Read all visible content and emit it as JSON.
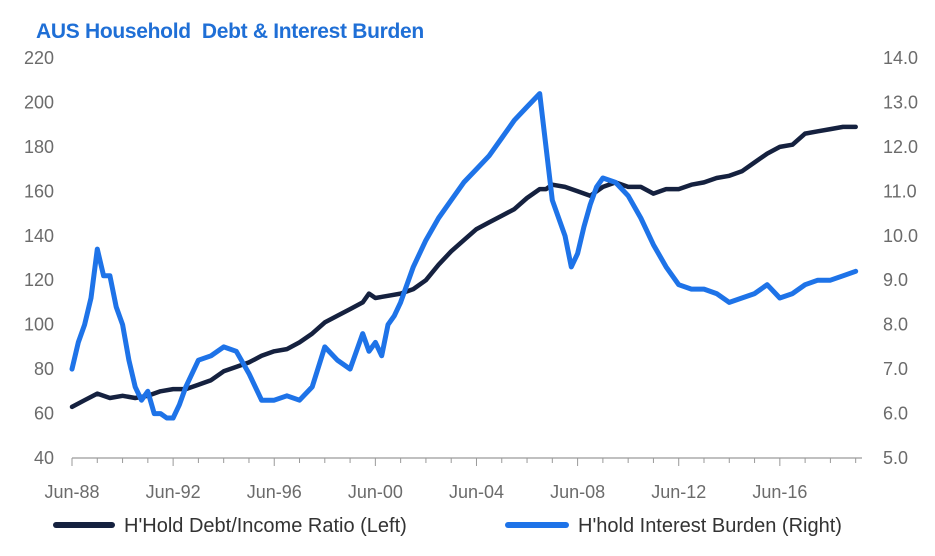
{
  "chart_data": {
    "type": "line",
    "title": "AUS Household  Debt & Interest Burden",
    "colors": {
      "title": "#1f6fd6",
      "debt": "#15213f",
      "interest": "#1e73e8",
      "axis": "#9a9a9a",
      "ticks": "#6b6b6b"
    },
    "x_ticks": [
      "Jun-88",
      "Jun-92",
      "Jun-96",
      "Jun-00",
      "Jun-04",
      "Jun-08",
      "Jun-12",
      "Jun-16"
    ],
    "x_range": [
      1988.5,
      2019.75
    ],
    "y_left": {
      "ticks": [
        "40",
        "60",
        "80",
        "100",
        "120",
        "140",
        "160",
        "180",
        "200",
        "220"
      ],
      "range": [
        40,
        220
      ]
    },
    "y_right": {
      "ticks": [
        "5.0",
        "6.0",
        "7.0",
        "8.0",
        "9.0",
        "10.0",
        "11.0",
        "12.0",
        "13.0",
        "14.0"
      ],
      "range": [
        5.0,
        14.0
      ]
    },
    "grid": false,
    "legend_position": "bottom",
    "series": [
      {
        "name": "H'Hold Debt/Income Ratio (Left)",
        "axis": "left",
        "x": [
          1988.5,
          1989.0,
          1989.5,
          1990.0,
          1990.5,
          1991.0,
          1991.5,
          1992.0,
          1992.5,
          1993.0,
          1993.5,
          1994.0,
          1994.5,
          1995.0,
          1995.5,
          1996.0,
          1996.5,
          1997.0,
          1997.5,
          1998.0,
          1998.5,
          1999.0,
          1999.5,
          2000.0,
          2000.25,
          2000.5,
          2001.0,
          2001.5,
          2002.0,
          2002.5,
          2003.0,
          2003.5,
          2004.0,
          2004.5,
          2005.0,
          2005.5,
          2006.0,
          2006.5,
          2007.0,
          2007.25,
          2007.5,
          2008.0,
          2008.5,
          2009.0,
          2009.5,
          2010.0,
          2010.5,
          2011.0,
          2011.5,
          2012.0,
          2012.5,
          2013.0,
          2013.5,
          2014.0,
          2014.5,
          2015.0,
          2015.5,
          2016.0,
          2016.5,
          2017.0,
          2017.5,
          2018.0,
          2018.5,
          2019.0,
          2019.5
        ],
        "values": [
          63,
          66,
          69,
          67,
          68,
          67,
          68,
          70,
          71,
          71,
          73,
          75,
          79,
          81,
          83,
          86,
          88,
          89,
          92,
          96,
          101,
          104,
          107,
          110,
          114,
          112,
          113,
          114,
          116,
          120,
          127,
          133,
          138,
          143,
          146,
          149,
          152,
          157,
          161,
          161,
          163,
          162,
          160,
          158,
          162,
          164,
          162,
          162,
          159,
          161,
          161,
          163,
          164,
          166,
          167,
          169,
          173,
          177,
          180,
          181,
          186,
          187,
          188,
          189,
          189
        ]
      },
      {
        "name": "H'hold Interest Burden (Right)",
        "axis": "right",
        "x": [
          1988.5,
          1988.75,
          1989.0,
          1989.25,
          1989.5,
          1989.75,
          1990.0,
          1990.25,
          1990.5,
          1990.75,
          1991.0,
          1991.25,
          1991.5,
          1991.75,
          1992.0,
          1992.25,
          1992.5,
          1992.75,
          1993.0,
          1993.5,
          1994.0,
          1994.5,
          1995.0,
          1995.5,
          1996.0,
          1996.5,
          1997.0,
          1997.5,
          1998.0,
          1998.5,
          1999.0,
          1999.5,
          2000.0,
          2000.25,
          2000.5,
          2000.75,
          2001.0,
          2001.25,
          2001.5,
          2002.0,
          2002.5,
          2003.0,
          2003.5,
          2004.0,
          2004.5,
          2005.0,
          2005.5,
          2006.0,
          2006.5,
          2007.0,
          2007.5,
          2008.0,
          2008.25,
          2008.5,
          2008.75,
          2009.0,
          2009.25,
          2009.5,
          2010.0,
          2010.5,
          2011.0,
          2011.5,
          2012.0,
          2012.5,
          2013.0,
          2013.5,
          2014.0,
          2014.5,
          2015.0,
          2015.5,
          2016.0,
          2016.5,
          2017.0,
          2017.5,
          2018.0,
          2018.5,
          2019.0,
          2019.5
        ],
        "values": [
          7.0,
          7.6,
          8.0,
          8.6,
          9.7,
          9.1,
          9.1,
          8.4,
          8.0,
          7.2,
          6.6,
          6.3,
          6.5,
          6.0,
          6.0,
          5.9,
          5.9,
          6.2,
          6.6,
          7.2,
          7.3,
          7.5,
          7.4,
          6.9,
          6.3,
          6.3,
          6.4,
          6.3,
          6.6,
          7.5,
          7.2,
          7.0,
          7.8,
          7.4,
          7.6,
          7.3,
          8.0,
          8.2,
          8.5,
          9.3,
          9.9,
          10.4,
          10.8,
          11.2,
          11.5,
          11.8,
          12.2,
          12.6,
          12.9,
          13.2,
          10.8,
          10.0,
          9.3,
          9.6,
          10.2,
          10.7,
          11.1,
          11.3,
          11.2,
          10.9,
          10.4,
          9.8,
          9.3,
          8.9,
          8.8,
          8.8,
          8.7,
          8.5,
          8.6,
          8.7,
          8.9,
          8.6,
          8.7,
          8.9,
          9.0,
          9.0,
          9.1,
          9.2
        ]
      }
    ]
  }
}
